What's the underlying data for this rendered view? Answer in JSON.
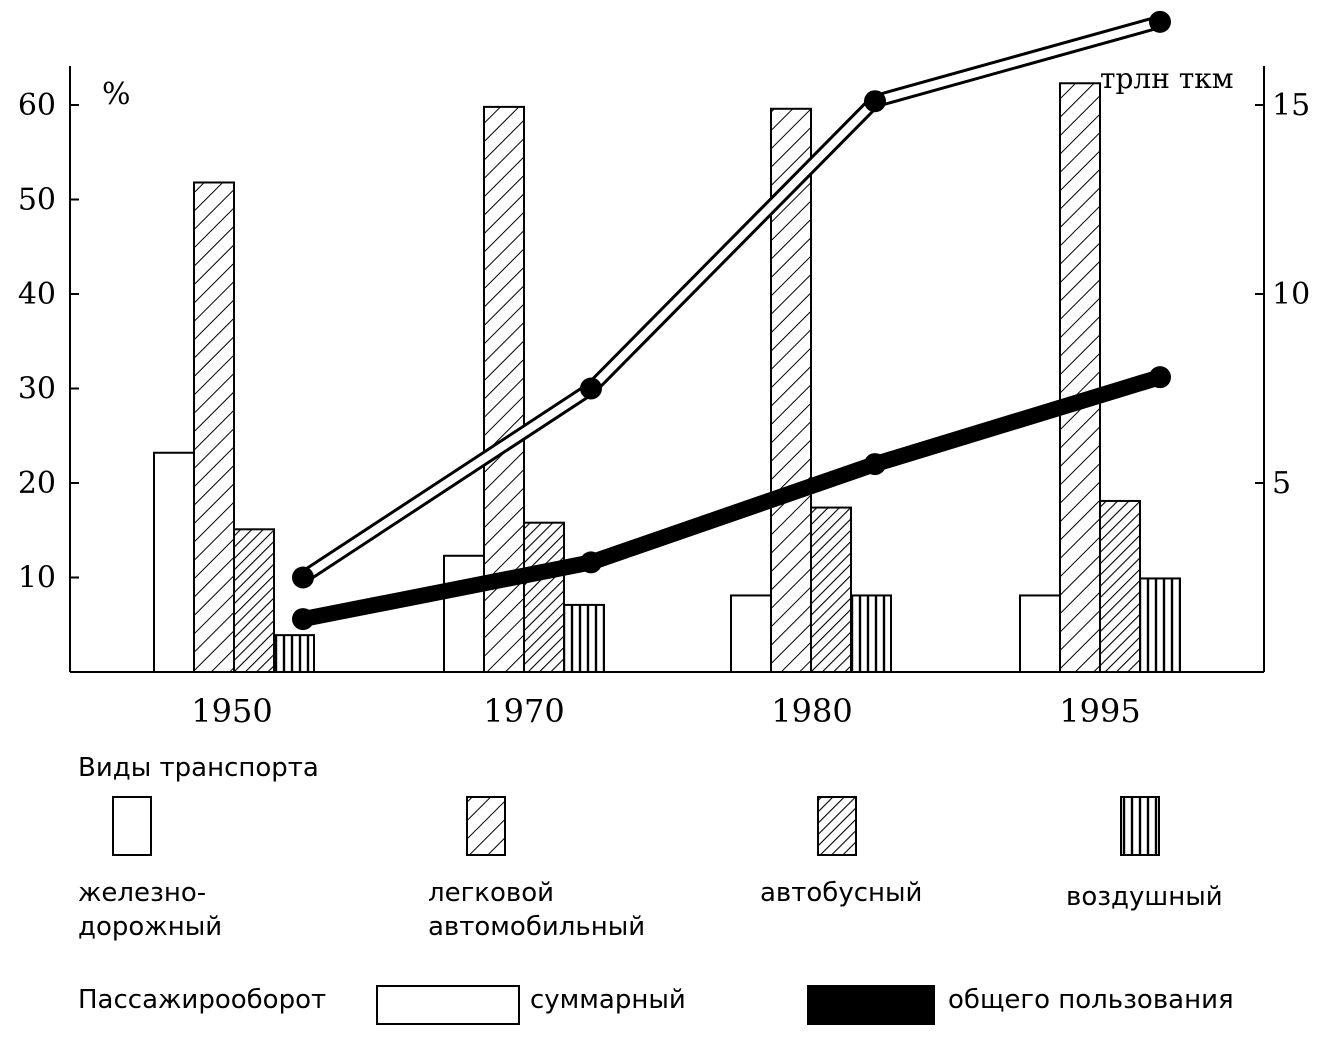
{
  "chart_data": {
    "type": "bar",
    "categories": [
      "1950",
      "1970",
      "1980",
      "1995"
    ],
    "left_axis": {
      "unit_label": "%",
      "ticks": [
        10,
        20,
        30,
        40,
        50,
        60
      ],
      "ylim": [
        0,
        64
      ]
    },
    "right_axis": {
      "unit_label": "трлн ткм",
      "ticks": [
        5,
        10,
        15
      ],
      "ylim": [
        0,
        16
      ]
    },
    "bar_series": [
      {
        "key": "rail",
        "name": "железно-\nдорожный",
        "pattern": "none",
        "values": [
          23.2,
          12.3,
          8.1,
          8.1
        ]
      },
      {
        "key": "car",
        "name": "легковой\nавтомобильный",
        "pattern": "hatch-sparse",
        "values": [
          51.8,
          59.8,
          59.6,
          62.3
        ]
      },
      {
        "key": "bus",
        "name": "автобусный",
        "pattern": "hatch-dense",
        "values": [
          15.1,
          15.8,
          17.4,
          18.1
        ]
      },
      {
        "key": "air",
        "name": "воздушный",
        "pattern": "vertical-lines",
        "values": [
          3.9,
          7.1,
          8.1,
          9.9
        ]
      }
    ],
    "line_series": [
      {
        "key": "total",
        "name": "суммарный",
        "style": "hollow",
        "values": [
          2.5,
          7.5,
          15.1,
          17.2
        ]
      },
      {
        "key": "public",
        "name": "общего пользования",
        "style": "solid",
        "values": [
          1.4,
          2.9,
          5.5,
          7.8
        ]
      }
    ]
  },
  "legend": {
    "types_title": "Виды транспорта",
    "flow_title": "Пассажирооборот"
  }
}
